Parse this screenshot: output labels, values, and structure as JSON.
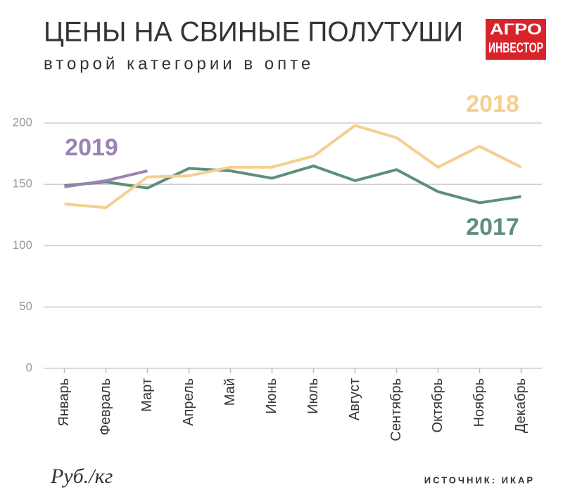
{
  "chart_data": {
    "type": "line",
    "title": "ЦЕНЫ НА СВИНЫЕ ПОЛУТУШИ",
    "subtitle": "второй категории в опте",
    "logo": [
      "АГРО",
      "ИНВЕСТОР"
    ],
    "unit": "Руб./кг",
    "source": "ИСТОЧНИК: ИКАР",
    "categories": [
      "Январь",
      "Февраль",
      "Март",
      "Апрель",
      "Май",
      "Июнь",
      "Июль",
      "Август",
      "Сентябрь",
      "Октябрь",
      "Ноябрь",
      "Декабрь"
    ],
    "series": [
      {
        "name": "2017",
        "color": "#5e8f79",
        "values": [
          149,
          152,
          147,
          163,
          161,
          155,
          165,
          153,
          162,
          144,
          135,
          140
        ]
      },
      {
        "name": "2018",
        "color": "#f5cf8f",
        "values": [
          134,
          131,
          156,
          157,
          164,
          164,
          173,
          198,
          188,
          164,
          181,
          164
        ]
      },
      {
        "name": "2019",
        "color": "#9a82b4",
        "values": [
          148,
          153,
          161,
          null,
          null,
          null,
          null,
          null,
          null,
          null,
          null,
          null
        ]
      }
    ],
    "ylim": [
      0,
      200
    ],
    "yticks": [
      0,
      50,
      100,
      150,
      200
    ],
    "grid": true
  }
}
